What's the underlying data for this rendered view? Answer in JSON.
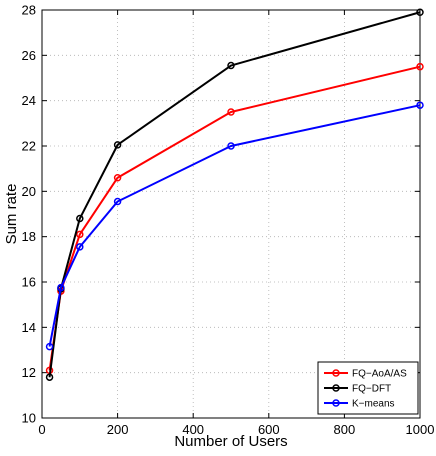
{
  "chart_data": {
    "type": "line",
    "title": "",
    "xlabel": "Number of Users",
    "ylabel": "Sum rate",
    "xlim": [
      0,
      1000
    ],
    "ylim": [
      10,
      28
    ],
    "xticks": [
      0,
      200,
      400,
      600,
      800,
      1000
    ],
    "yticks": [
      10,
      12,
      14,
      16,
      18,
      20,
      22,
      24,
      26,
      28
    ],
    "grid": true,
    "legend_position": "bottom-right",
    "x": [
      20,
      50,
      100,
      200,
      500,
      1000
    ],
    "series": [
      {
        "name": "FQ−AoA/AS",
        "color": "#ff0000",
        "values": [
          12.1,
          15.6,
          18.1,
          20.6,
          23.5,
          25.5
        ]
      },
      {
        "name": "FQ−DFT",
        "color": "#000000",
        "values": [
          11.8,
          15.7,
          18.8,
          22.05,
          25.55,
          27.9
        ]
      },
      {
        "name": "K−means",
        "color": "#0000ff",
        "values": [
          13.15,
          15.75,
          17.55,
          19.55,
          22.0,
          23.8
        ]
      }
    ]
  }
}
